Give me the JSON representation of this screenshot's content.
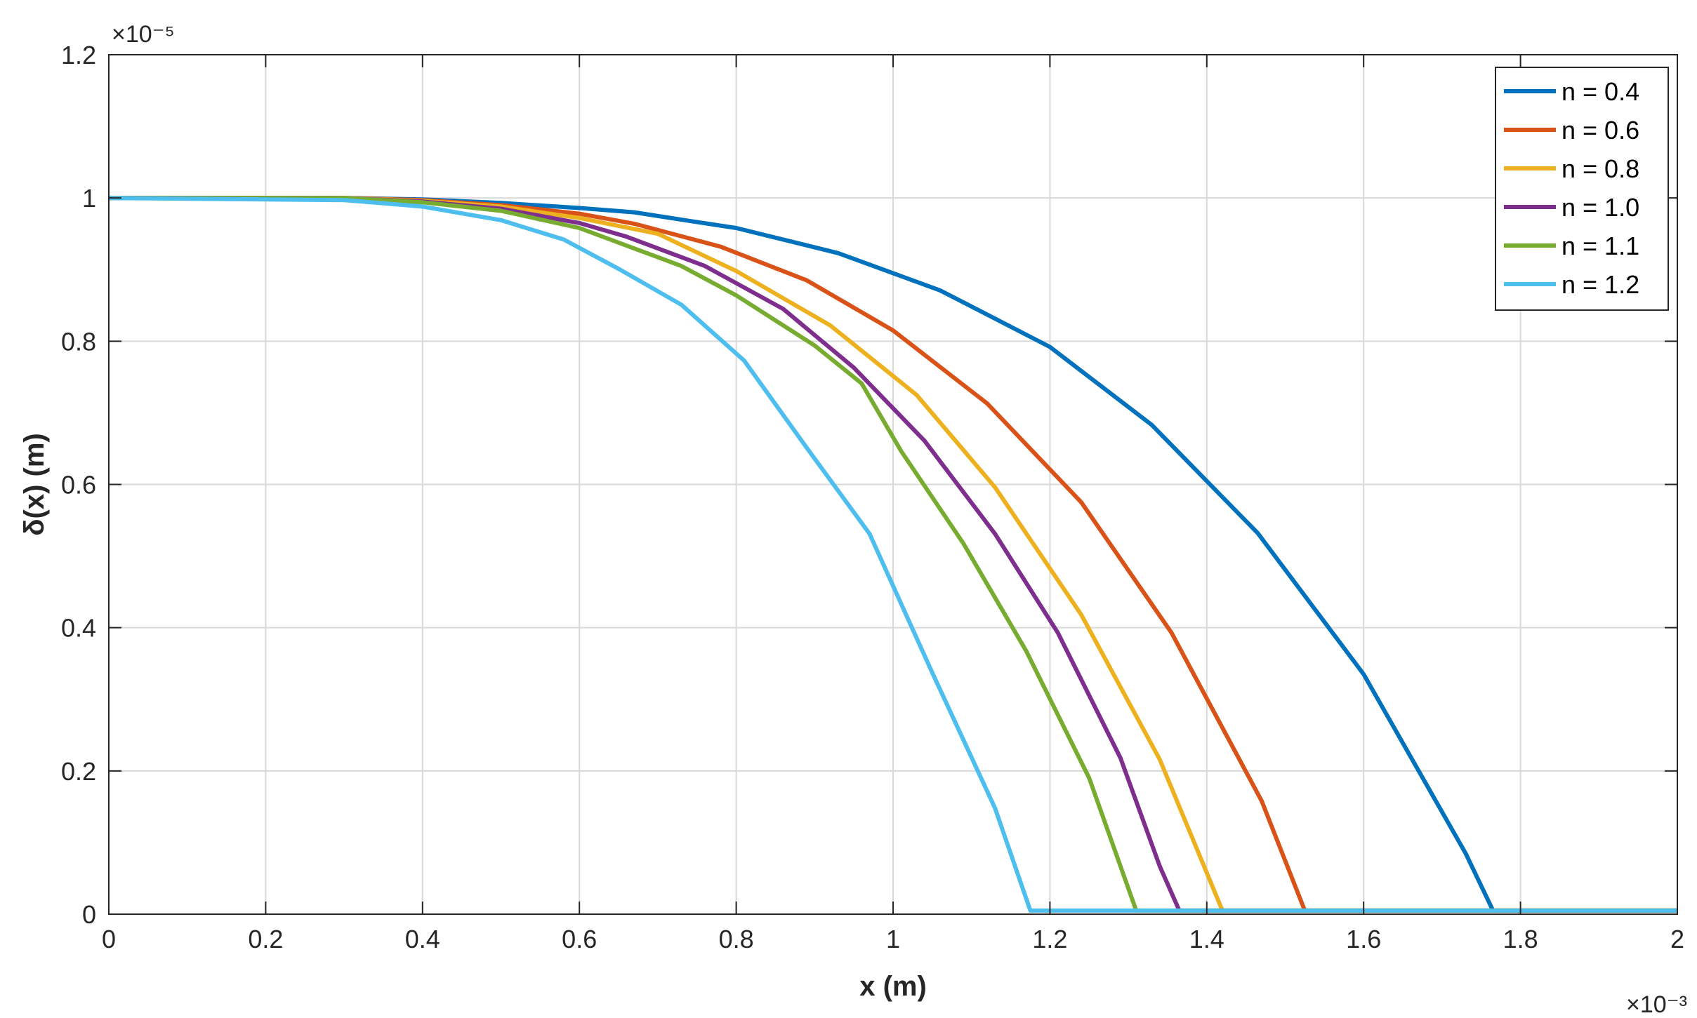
{
  "chart_data": {
    "type": "line",
    "title": "",
    "xlabel": "x (m)",
    "ylabel": "δ(x) (m)",
    "x_exponent": "×10⁻³",
    "y_exponent": "×10⁻⁵",
    "xlim": [
      0,
      2
    ],
    "ylim": [
      0,
      1.2
    ],
    "x_ticks": [
      "0",
      "0.2",
      "0.4",
      "0.6",
      "0.8",
      "1",
      "1.2",
      "1.4",
      "1.6",
      "1.8",
      "2"
    ],
    "y_ticks": [
      "0",
      "0.2",
      "0.4",
      "0.6",
      "0.8",
      "1",
      "1.2"
    ],
    "grid": true,
    "legend_position": "top-right",
    "series": [
      {
        "name": "n = 0.4",
        "color": "#0072BD",
        "x": [
          0,
          0.3,
          0.4,
          0.5,
          0.6,
          0.67,
          0.74,
          0.8,
          0.93,
          1.06,
          1.2,
          1.33,
          1.465,
          1.6,
          1.73,
          1.765,
          2.0
        ],
        "y": [
          1.0,
          1.0,
          0.998,
          0.993,
          0.986,
          0.98,
          0.968,
          0.958,
          0.923,
          0.871,
          0.792,
          0.683,
          0.532,
          0.335,
          0.085,
          0.005,
          0.005
        ]
      },
      {
        "name": "n = 0.6",
        "color": "#D95319",
        "x": [
          0,
          0.3,
          0.4,
          0.5,
          0.6,
          0.67,
          0.78,
          0.89,
          1.0,
          1.12,
          1.24,
          1.355,
          1.47,
          1.525,
          2.0
        ],
        "y": [
          1.0,
          1.0,
          0.997,
          0.99,
          0.978,
          0.964,
          0.932,
          0.885,
          0.815,
          0.713,
          0.575,
          0.393,
          0.158,
          0.005,
          0.005
        ]
      },
      {
        "name": "n = 0.8",
        "color": "#EDB120",
        "x": [
          0,
          0.3,
          0.4,
          0.5,
          0.6,
          0.7,
          0.8,
          0.92,
          1.03,
          1.13,
          1.24,
          1.34,
          1.42,
          2.0
        ],
        "y": [
          1.0,
          1.0,
          0.996,
          0.988,
          0.972,
          0.95,
          0.898,
          0.822,
          0.725,
          0.596,
          0.418,
          0.216,
          0.005,
          0.005
        ]
      },
      {
        "name": "n = 1.0",
        "color": "#7E2F8E",
        "x": [
          0,
          0.3,
          0.4,
          0.5,
          0.6,
          0.66,
          0.76,
          0.86,
          0.95,
          1.04,
          1.13,
          1.21,
          1.29,
          1.34,
          1.365,
          2.0
        ],
        "y": [
          1.0,
          1.0,
          0.995,
          0.985,
          0.965,
          0.946,
          0.905,
          0.845,
          0.763,
          0.661,
          0.531,
          0.393,
          0.218,
          0.067,
          0.005,
          0.005
        ]
      },
      {
        "name": "n = 1.1",
        "color": "#77AC30",
        "x": [
          0,
          0.3,
          0.4,
          0.5,
          0.6,
          0.73,
          0.8,
          0.9,
          0.96,
          1.01,
          1.09,
          1.17,
          1.25,
          1.31,
          2.0
        ],
        "y": [
          1.0,
          1.0,
          0.994,
          0.982,
          0.958,
          0.905,
          0.864,
          0.794,
          0.741,
          0.647,
          0.517,
          0.367,
          0.19,
          0.005,
          0.005
        ]
      },
      {
        "name": "n = 1.2",
        "color": "#4DBEEE",
        "x": [
          0,
          0.3,
          0.4,
          0.5,
          0.58,
          0.65,
          0.73,
          0.81,
          0.89,
          0.97,
          1.05,
          1.13,
          1.175,
          2.0
        ],
        "y": [
          1.0,
          0.997,
          0.988,
          0.969,
          0.942,
          0.901,
          0.851,
          0.773,
          0.651,
          0.531,
          0.337,
          0.148,
          0.005,
          0.005
        ]
      }
    ]
  }
}
